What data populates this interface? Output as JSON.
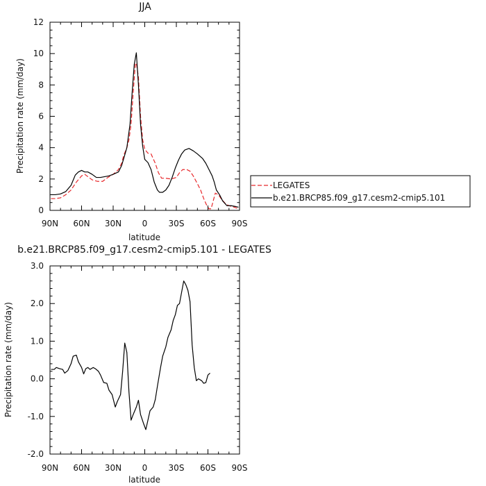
{
  "chart_data": [
    {
      "type": "line",
      "title": "JJA",
      "xlabel": "latitude",
      "ylabel": "Precipitation rate (mm/day)",
      "xlim": [
        90,
        -90
      ],
      "ylim": [
        0,
        12
      ],
      "x_ticks": [
        90,
        60,
        30,
        0,
        -30,
        -60,
        -90
      ],
      "x_tick_labels": [
        "90N",
        "60N",
        "30N",
        "0",
        "30S",
        "60S",
        "90S"
      ],
      "y_ticks": [
        0,
        2,
        4,
        6,
        8,
        10,
        12
      ],
      "y_tick_labels": [
        "0",
        "2",
        "4",
        "6",
        "8",
        "10",
        "12"
      ],
      "legend": "right",
      "grid": false,
      "series": [
        {
          "name": "LEGATES",
          "color": "#e8272a",
          "dash": "dashed",
          "points": [
            [
              89,
              0.75
            ],
            [
              85,
              0.75
            ],
            [
              80,
              0.8
            ],
            [
              75,
              1.0
            ],
            [
              70,
              1.3
            ],
            [
              65,
              1.8
            ],
            [
              60,
              2.2
            ],
            [
              57,
              2.3
            ],
            [
              55,
              2.2
            ],
            [
              50,
              1.95
            ],
            [
              45,
              1.85
            ],
            [
              40,
              1.85
            ],
            [
              35,
              2.1
            ],
            [
              30,
              2.3
            ],
            [
              25,
              2.6
            ],
            [
              22,
              3.0
            ],
            [
              20,
              3.5
            ],
            [
              17,
              4.0
            ],
            [
              15,
              4.5
            ],
            [
              13,
              5.5
            ],
            [
              11,
              7.5
            ],
            [
              9,
              9.3
            ],
            [
              8,
              9.4
            ],
            [
              6,
              8.5
            ],
            [
              4,
              6.0
            ],
            [
              2,
              4.5
            ],
            [
              0,
              3.9
            ],
            [
              -3,
              3.65
            ],
            [
              -6,
              3.6
            ],
            [
              -10,
              3.0
            ],
            [
              -13,
              2.4
            ],
            [
              -16,
              2.05
            ],
            [
              -20,
              2.05
            ],
            [
              -25,
              2.0
            ],
            [
              -30,
              2.1
            ],
            [
              -33,
              2.4
            ],
            [
              -36,
              2.6
            ],
            [
              -40,
              2.6
            ],
            [
              -43,
              2.5
            ],
            [
              -46,
              2.2
            ],
            [
              -50,
              1.7
            ],
            [
              -53,
              1.3
            ],
            [
              -56,
              0.75
            ],
            [
              -59,
              0.3
            ],
            [
              -61,
              0.1
            ],
            [
              -63,
              0.1
            ],
            [
              -65,
              0.6
            ],
            [
              -67,
              1.1
            ],
            [
              -70,
              1.0
            ],
            [
              -73,
              0.7
            ],
            [
              -77,
              0.4
            ],
            [
              -80,
              0.3
            ],
            [
              -85,
              0.2
            ],
            [
              -89,
              0.1
            ]
          ]
        },
        {
          "name": "b.e21.BRCP85.f09_g17.cesm2-cmip5.101",
          "color": "#000000",
          "dash": "solid",
          "points": [
            [
              89,
              1.0
            ],
            [
              85,
              1.0
            ],
            [
              80,
              1.05
            ],
            [
              75,
              1.2
            ],
            [
              70,
              1.6
            ],
            [
              66,
              2.25
            ],
            [
              63,
              2.45
            ],
            [
              60,
              2.55
            ],
            [
              57,
              2.45
            ],
            [
              54,
              2.45
            ],
            [
              50,
              2.3
            ],
            [
              46,
              2.1
            ],
            [
              42,
              2.1
            ],
            [
              38,
              2.15
            ],
            [
              34,
              2.2
            ],
            [
              30,
              2.3
            ],
            [
              25,
              2.45
            ],
            [
              22,
              2.85
            ],
            [
              20,
              3.3
            ],
            [
              17,
              4.0
            ],
            [
              14,
              5.5
            ],
            [
              12,
              7.5
            ],
            [
              10,
              9.3
            ],
            [
              8,
              10.05
            ],
            [
              6,
              8.0
            ],
            [
              4,
              5.5
            ],
            [
              2,
              4.1
            ],
            [
              0,
              3.25
            ],
            [
              -3,
              3.05
            ],
            [
              -6,
              2.6
            ],
            [
              -9,
              1.8
            ],
            [
              -12,
              1.3
            ],
            [
              -14,
              1.15
            ],
            [
              -17,
              1.15
            ],
            [
              -20,
              1.3
            ],
            [
              -23,
              1.6
            ],
            [
              -26,
              2.1
            ],
            [
              -29,
              2.7
            ],
            [
              -32,
              3.2
            ],
            [
              -35,
              3.6
            ],
            [
              -38,
              3.85
            ],
            [
              -42,
              3.95
            ],
            [
              -46,
              3.8
            ],
            [
              -50,
              3.6
            ],
            [
              -55,
              3.3
            ],
            [
              -58,
              3.0
            ],
            [
              -61,
              2.6
            ],
            [
              -64,
              2.2
            ],
            [
              -66,
              1.8
            ],
            [
              -68,
              1.3
            ],
            [
              -71,
              1.0
            ],
            [
              -74,
              0.6
            ],
            [
              -78,
              0.3
            ],
            [
              -82,
              0.3
            ],
            [
              -86,
              0.25
            ],
            [
              -89,
              0.2
            ]
          ]
        }
      ]
    },
    {
      "type": "line",
      "title": "b.e21.BRCP85.f09_g17.cesm2-cmip5.101 - LEGATES",
      "xlabel": "latitude",
      "ylabel": "Precipitation rate (mm/day)",
      "xlim": [
        90,
        -90
      ],
      "ylim": [
        -2.0,
        3.0
      ],
      "x_ticks": [
        90,
        60,
        30,
        0,
        -30,
        -60,
        -90
      ],
      "x_tick_labels": [
        "90N",
        "60N",
        "30N",
        "0",
        "30S",
        "60S",
        "90S"
      ],
      "y_ticks": [
        -2.0,
        -1.0,
        0.0,
        1.0,
        2.0,
        3.0
      ],
      "y_tick_labels": [
        "-2.0",
        "-1.0",
        "0.0",
        "1.0",
        "2.0",
        "3.0"
      ],
      "grid": false,
      "series": [
        {
          "color": "#000000",
          "dash": "solid",
          "points": [
            [
              89,
              0.25
            ],
            [
              86,
              0.25
            ],
            [
              84,
              0.3
            ],
            [
              81,
              0.27
            ],
            [
              78,
              0.25
            ],
            [
              76,
              0.15
            ],
            [
              73,
              0.22
            ],
            [
              70,
              0.4
            ],
            [
              68,
              0.6
            ],
            [
              65,
              0.63
            ],
            [
              63,
              0.45
            ],
            [
              60,
              0.3
            ],
            [
              58,
              0.13
            ],
            [
              56,
              0.27
            ],
            [
              54,
              0.3
            ],
            [
              52,
              0.25
            ],
            [
              49,
              0.3
            ],
            [
              47,
              0.27
            ],
            [
              44,
              0.2
            ],
            [
              42,
              0.1
            ],
            [
              39,
              -0.1
            ],
            [
              36,
              -0.12
            ],
            [
              34,
              -0.3
            ],
            [
              31,
              -0.42
            ],
            [
              28,
              -0.75
            ],
            [
              26,
              -0.6
            ],
            [
              23,
              -0.42
            ],
            [
              21,
              0.2
            ],
            [
              19,
              0.95
            ],
            [
              17,
              0.7
            ],
            [
              15,
              -0.35
            ],
            [
              13,
              -1.1
            ],
            [
              11,
              -0.95
            ],
            [
              8,
              -0.75
            ],
            [
              6,
              -0.57
            ],
            [
              4,
              -0.95
            ],
            [
              1,
              -1.2
            ],
            [
              -1,
              -1.35
            ],
            [
              -3,
              -1.1
            ],
            [
              -5,
              -0.85
            ],
            [
              -8,
              -0.75
            ],
            [
              -10,
              -0.55
            ],
            [
              -12,
              -0.2
            ],
            [
              -15,
              0.3
            ],
            [
              -17,
              0.6
            ],
            [
              -20,
              0.85
            ],
            [
              -22,
              1.1
            ],
            [
              -25,
              1.3
            ],
            [
              -27,
              1.55
            ],
            [
              -29,
              1.7
            ],
            [
              -31,
              1.95
            ],
            [
              -33,
              2.0
            ],
            [
              -35,
              2.3
            ],
            [
              -37,
              2.6
            ],
            [
              -39,
              2.5
            ],
            [
              -41,
              2.35
            ],
            [
              -43,
              2.05
            ],
            [
              -45,
              0.9
            ],
            [
              -47,
              0.3
            ],
            [
              -49,
              -0.05
            ],
            [
              -51,
              0.0
            ],
            [
              -54,
              -0.05
            ],
            [
              -56,
              -0.12
            ],
            [
              -58,
              -0.1
            ],
            [
              -60,
              0.1
            ],
            [
              -62,
              0.15
            ]
          ]
        }
      ]
    }
  ]
}
